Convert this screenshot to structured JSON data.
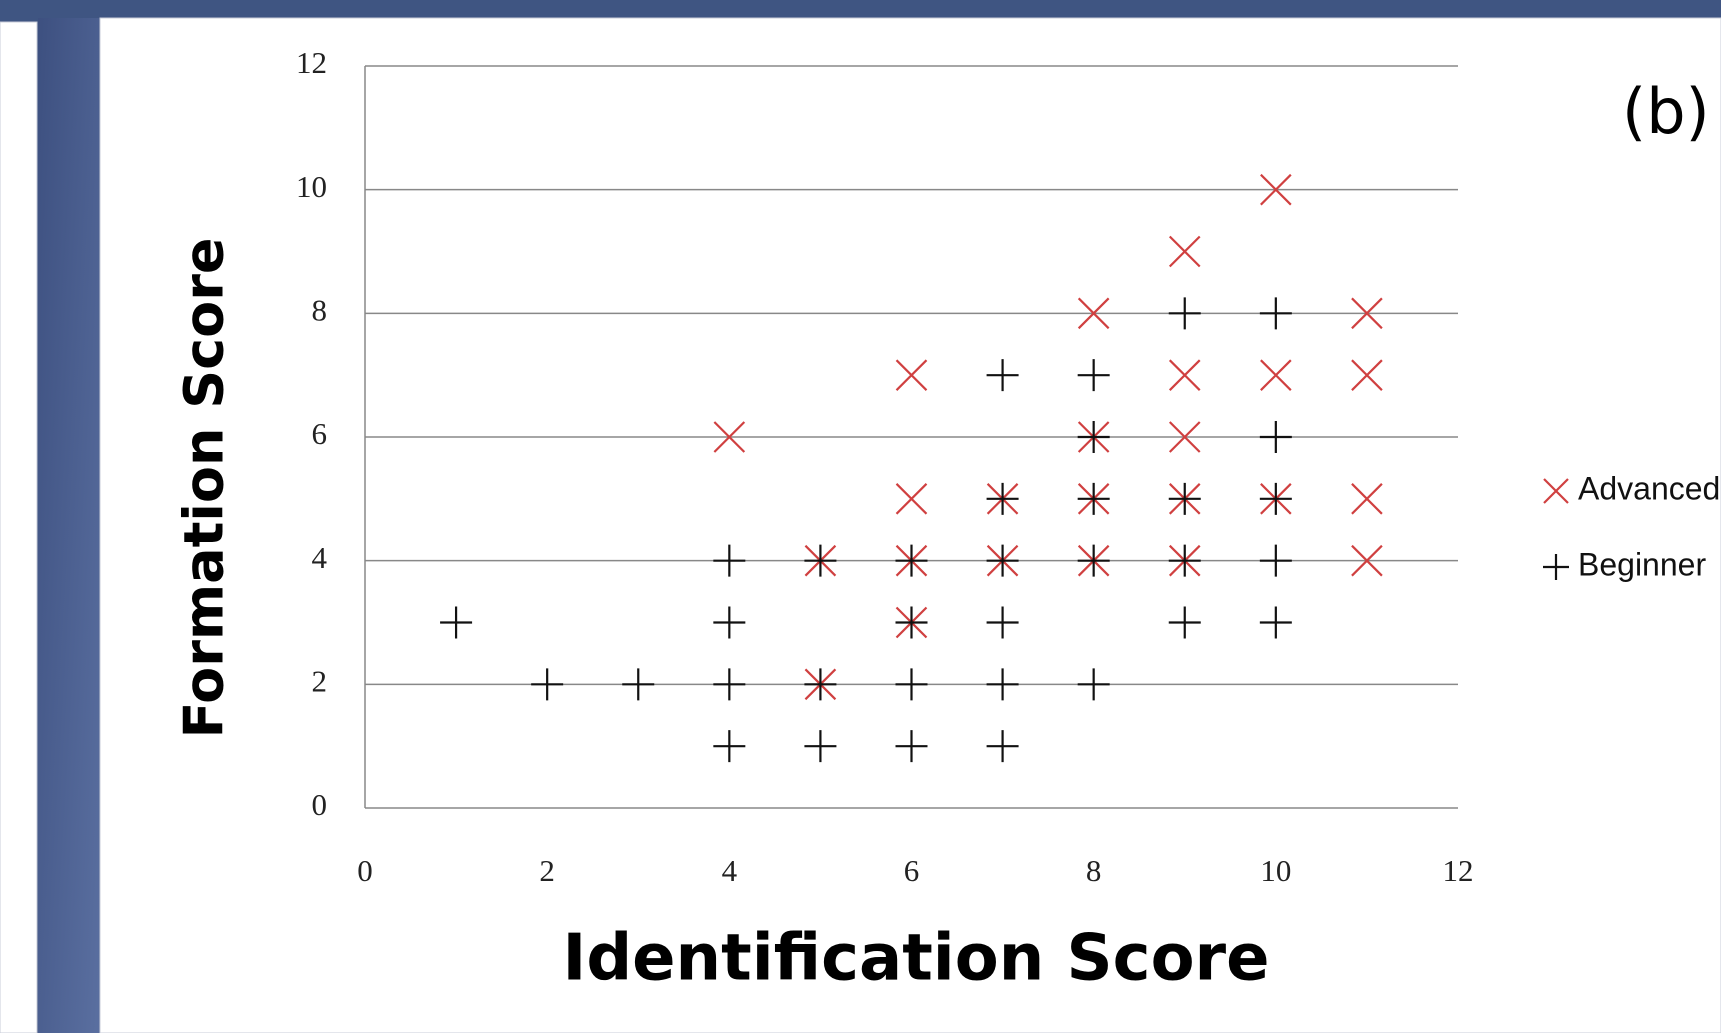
{
  "chart_data": {
    "type": "scatter",
    "label": "(b)",
    "xlabel": "Identification Score",
    "ylabel": "Formation Score",
    "xlim": [
      0,
      12
    ],
    "xticks": [
      0,
      2,
      4,
      6,
      8,
      10,
      12
    ],
    "ylim": [
      0,
      12
    ],
    "yticks": [
      0,
      2,
      4,
      6,
      8,
      10,
      12
    ],
    "grid": true,
    "legend": "right",
    "series": [
      {
        "name": "Advanced",
        "color": "#d04040",
        "marker": "x",
        "x": [
          4,
          5,
          5,
          6,
          6,
          6,
          6,
          7,
          7,
          8,
          8,
          8,
          8,
          9,
          9,
          9,
          9,
          9,
          10,
          10,
          10,
          11,
          11,
          11,
          11
        ],
        "values": [
          6,
          4,
          2,
          7,
          5,
          4,
          3,
          5,
          4,
          8,
          6,
          5,
          4,
          9,
          7,
          6,
          5,
          4,
          10,
          7,
          5,
          8,
          7,
          5,
          4
        ]
      },
      {
        "name": "Beginner",
        "color": "#111111",
        "marker": "+",
        "x": [
          1,
          2,
          3,
          4,
          4,
          4,
          4,
          5,
          5,
          5,
          6,
          6,
          6,
          6,
          7,
          7,
          7,
          7,
          7,
          7,
          8,
          8,
          8,
          8,
          8,
          9,
          9,
          9,
          9,
          10,
          10,
          10,
          10,
          10
        ],
        "values": [
          3,
          2,
          2,
          4,
          3,
          2,
          1,
          4,
          2,
          1,
          4,
          3,
          2,
          1,
          7,
          5,
          4,
          3,
          2,
          1,
          7,
          6,
          5,
          4,
          2,
          8,
          5,
          4,
          3,
          8,
          6,
          5,
          4,
          3
        ]
      }
    ]
  }
}
